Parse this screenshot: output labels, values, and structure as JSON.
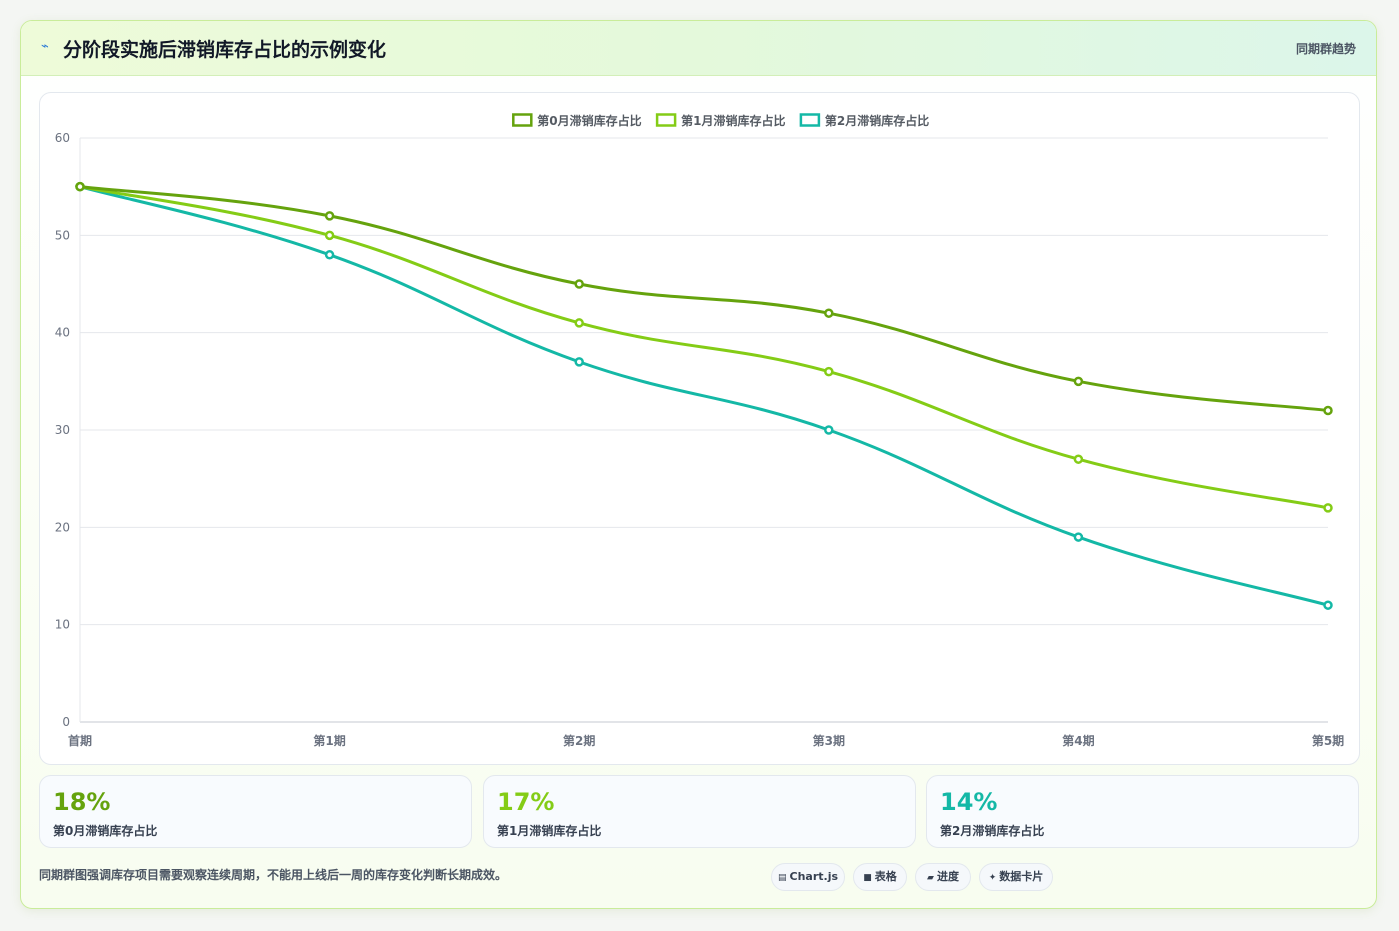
{
  "header": {
    "icon": "trend-line-icon",
    "title": "分阶段实施后滞销库存占比的示例变化",
    "tag": "同期群趋势"
  },
  "colors": {
    "series0": "#65a30d",
    "series1": "#84cc16",
    "series2": "#14b8a6",
    "grid": "#e5e7eb",
    "axis": "#c4c9d0"
  },
  "chart_data": {
    "type": "line",
    "categories": [
      "首期",
      "第1期",
      "第2期",
      "第3期",
      "第4期",
      "第5期"
    ],
    "series": [
      {
        "name": "第0月滞销库存占比",
        "values": [
          55,
          52,
          45,
          42,
          35,
          32
        ],
        "color": "#65a30d"
      },
      {
        "name": "第1月滞销库存占比",
        "values": [
          55,
          50,
          41,
          36,
          27,
          22
        ],
        "color": "#84cc16"
      },
      {
        "name": "第2月滞销库存占比",
        "values": [
          55,
          48,
          37,
          30,
          19,
          12
        ],
        "color": "#14b8a6"
      }
    ],
    "ylim": [
      0,
      60
    ],
    "yticks": [
      0,
      10,
      20,
      30,
      40,
      50,
      60
    ],
    "grid": true,
    "legend_position": "top-center",
    "smooth": true
  },
  "stats": [
    {
      "value": "18%",
      "label": "第0月滞销库存占比",
      "color": "#65a30d"
    },
    {
      "value": "17%",
      "label": "第1月滞销库存占比",
      "color": "#84cc16"
    },
    {
      "value": "14%",
      "label": "第2月滞销库存占比",
      "color": "#14b8a6"
    }
  ],
  "footnote": "同期群图强调库存项目需要观察连续周期，不能用上线后一周的库存变化判断长期成效。",
  "chips": [
    {
      "icon": "chart-icon",
      "glyph": "▤",
      "label": "Chart.js"
    },
    {
      "icon": "table-icon",
      "glyph": "■",
      "label": "表格"
    },
    {
      "icon": "progress-icon",
      "glyph": "▰",
      "label": "进度"
    },
    {
      "icon": "data-card-icon",
      "glyph": "✦",
      "label": "数据卡片"
    }
  ]
}
